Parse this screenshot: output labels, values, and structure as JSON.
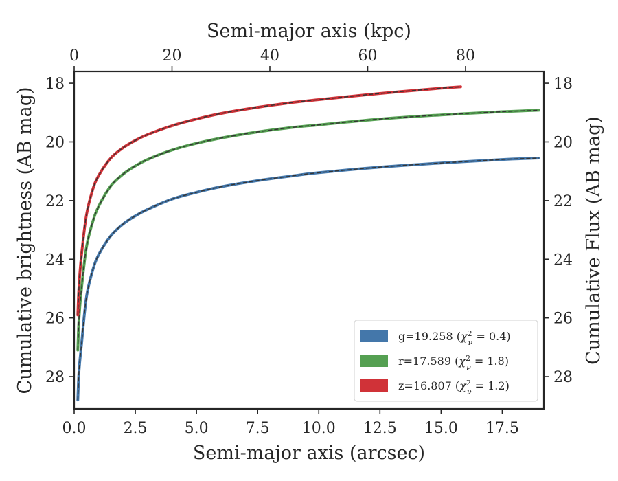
{
  "chart_data": {
    "type": "line",
    "xlabel": "Semi-major axis (arcsec)",
    "x2label": "Semi-major axis (kpc)",
    "ylabel": "Cumulative brightness (AB mag)",
    "y2label": "Cumulative Flux (AB mag)",
    "xlim": [
      0,
      19.2
    ],
    "x2lim": [
      0,
      96.0
    ],
    "ylim": [
      29.1,
      17.6
    ],
    "y_inverted": true,
    "xticks": [
      "0.0",
      "2.5",
      "5.0",
      "7.5",
      "10.0",
      "12.5",
      "15.0",
      "17.5"
    ],
    "x2ticks": [
      "0",
      "20",
      "40",
      "60",
      "80"
    ],
    "yticks": [
      "18",
      "20",
      "22",
      "24",
      "26",
      "28"
    ],
    "grid": false,
    "legend_position": "lower-right",
    "series": [
      {
        "name": "g=19.258 (χ²_ν = 0.4)",
        "name_main": "g=19.258 (",
        "name_chi": "χ",
        "name_sup": "2",
        "name_sub": "ν",
        "name_tail": " = 0.4)",
        "color": "#4477aa",
        "x": [
          0.15,
          0.2,
          0.3,
          0.5,
          0.75,
          1.0,
          1.5,
          2.0,
          2.5,
          3.0,
          4.0,
          5.0,
          6.0,
          7.5,
          9.0,
          10.0,
          12.5,
          15.0,
          17.5,
          19.0
        ],
        "y": [
          28.8,
          27.8,
          26.9,
          25.3,
          24.4,
          23.85,
          23.2,
          22.8,
          22.52,
          22.3,
          21.95,
          21.72,
          21.53,
          21.32,
          21.15,
          21.05,
          20.86,
          20.72,
          20.6,
          20.55
        ]
      },
      {
        "name": "r=17.589 (χ²_ν = 1.8)",
        "name_main": "r=17.589 (",
        "name_chi": "χ",
        "name_sup": "2",
        "name_sub": "ν",
        "name_tail": " = 1.8)",
        "color": "#55a052",
        "x": [
          0.15,
          0.2,
          0.3,
          0.5,
          0.75,
          1.0,
          1.5,
          2.0,
          2.5,
          3.0,
          4.0,
          5.0,
          6.0,
          7.5,
          9.0,
          10.0,
          12.5,
          15.0,
          17.5,
          19.0
        ],
        "y": [
          27.1,
          26.0,
          25.0,
          23.6,
          22.75,
          22.2,
          21.5,
          21.1,
          20.82,
          20.6,
          20.28,
          20.05,
          19.87,
          19.66,
          19.5,
          19.42,
          19.22,
          19.08,
          18.97,
          18.92
        ]
      },
      {
        "name": "z=16.807 (χ²_ν = 1.2)",
        "name_main": "z=16.807 (",
        "name_chi": "χ",
        "name_sup": "2",
        "name_sub": "ν",
        "name_tail": " = 1.2)",
        "color": "#d03238",
        "x": [
          0.15,
          0.2,
          0.3,
          0.5,
          0.75,
          1.0,
          1.5,
          2.0,
          2.5,
          3.0,
          4.0,
          5.0,
          6.0,
          7.5,
          9.0,
          10.0,
          12.5,
          15.0,
          15.8
        ],
        "y": [
          25.9,
          24.9,
          23.85,
          22.5,
          21.65,
          21.15,
          20.55,
          20.2,
          19.95,
          19.75,
          19.45,
          19.22,
          19.03,
          18.82,
          18.65,
          18.56,
          18.35,
          18.17,
          18.12
        ]
      }
    ]
  }
}
